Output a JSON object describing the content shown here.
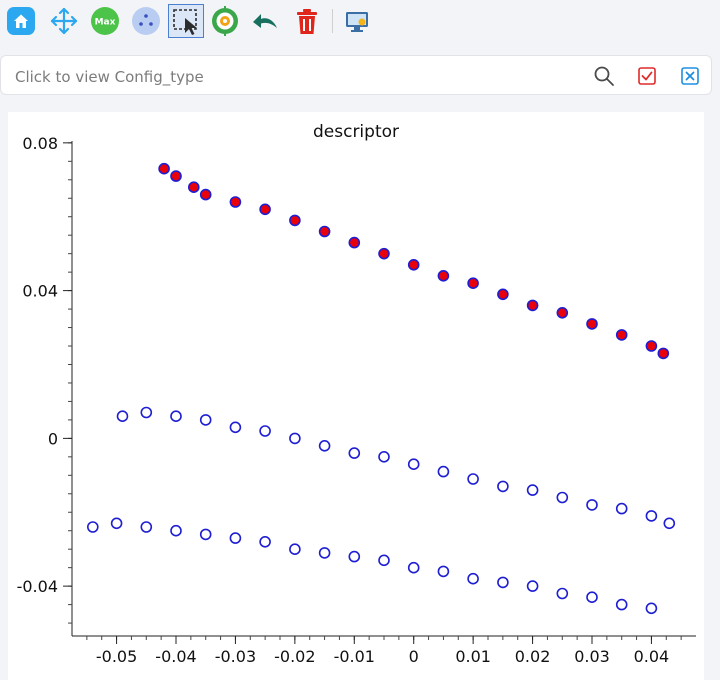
{
  "toolbar": {
    "tools": [
      {
        "name": "home",
        "icon": "home-icon"
      },
      {
        "name": "pan",
        "icon": "pan-arrows-icon"
      },
      {
        "name": "max",
        "icon": "max-icon",
        "label": "Max"
      },
      {
        "name": "points",
        "icon": "points-icon"
      },
      {
        "name": "select",
        "icon": "box-select-icon",
        "selected": true
      },
      {
        "name": "target",
        "icon": "target-icon"
      },
      {
        "name": "undo",
        "icon": "undo-arrow-icon"
      },
      {
        "name": "delete",
        "icon": "trash-icon"
      },
      {
        "name": "screen",
        "icon": "monitor-icon"
      }
    ]
  },
  "search": {
    "placeholder": "Click to view Config_type"
  },
  "colors": {
    "selected_fill": "#e8000b",
    "marker_edge": "#1e1ed2",
    "unselected_fill": "#ffffff",
    "toolbar_accent": "#1e9be8"
  },
  "chart_data": {
    "type": "scatter",
    "title": "descriptor",
    "xlabel": "",
    "ylabel": "",
    "xlim": [
      -0.0575,
      0.0475
    ],
    "ylim": [
      -0.0535,
      0.0805
    ],
    "xticks": [
      "-0.05",
      "-0.04",
      "-0.03",
      "-0.02",
      "-0.01",
      "0",
      "0.01",
      "0.02",
      "0.03",
      "0.04"
    ],
    "yticks": [
      "0.08",
      "0.04",
      "0",
      "-0.04"
    ],
    "grid": false,
    "legend": "none",
    "series": [
      {
        "selected": true,
        "x": [
          -0.042,
          -0.04,
          -0.037,
          -0.035,
          -0.03,
          -0.025,
          -0.02,
          -0.015,
          -0.01,
          -0.005,
          0,
          0.005,
          0.01,
          0.015,
          0.02,
          0.025,
          0.03,
          0.035,
          0.04,
          0.042
        ],
        "y": [
          0.073,
          0.071,
          0.068,
          0.066,
          0.064,
          0.062,
          0.059,
          0.056,
          0.053,
          0.05,
          0.047,
          0.044,
          0.042,
          0.039,
          0.036,
          0.034,
          0.031,
          0.028,
          0.025,
          0.023
        ]
      },
      {
        "selected": false,
        "x": [
          -0.049,
          -0.045,
          -0.04,
          -0.035,
          -0.03,
          -0.025,
          -0.02,
          -0.015,
          -0.01,
          -0.005,
          0,
          0.005,
          0.01,
          0.015,
          0.02,
          0.025,
          0.03,
          0.035,
          0.04,
          0.043
        ],
        "y": [
          0.006,
          0.007,
          0.006,
          0.005,
          0.003,
          0.002,
          0.0,
          -0.002,
          -0.004,
          -0.005,
          -0.007,
          -0.009,
          -0.011,
          -0.013,
          -0.014,
          -0.016,
          -0.018,
          -0.019,
          -0.021,
          -0.023
        ]
      },
      {
        "selected": false,
        "x": [
          -0.054,
          -0.05,
          -0.045,
          -0.04,
          -0.035,
          -0.03,
          -0.025,
          -0.02,
          -0.015,
          -0.01,
          -0.005,
          0,
          0.005,
          0.01,
          0.015,
          0.02,
          0.025,
          0.03,
          0.035,
          0.04
        ],
        "y": [
          -0.024,
          -0.023,
          -0.024,
          -0.025,
          -0.026,
          -0.027,
          -0.028,
          -0.03,
          -0.031,
          -0.032,
          -0.033,
          -0.035,
          -0.036,
          -0.038,
          -0.039,
          -0.04,
          -0.042,
          -0.043,
          -0.045,
          -0.046
        ]
      }
    ]
  }
}
